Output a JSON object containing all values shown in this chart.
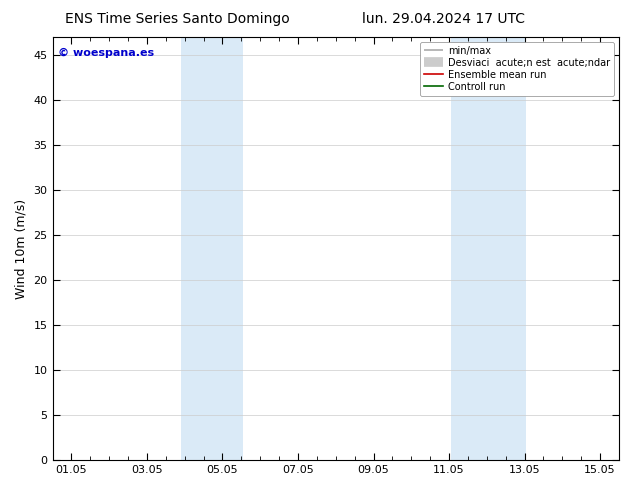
{
  "title_left": "ENS Time Series Santo Domingo",
  "title_right": "lun. 29.04.2024 17 UTC",
  "watermark": "© woespana.es",
  "ylabel": "Wind 10m (m/s)",
  "ylim": [
    0,
    47
  ],
  "yticks": [
    0,
    5,
    10,
    15,
    20,
    25,
    30,
    35,
    40,
    45
  ],
  "xtick_labels": [
    "01.05",
    "03.05",
    "05.05",
    "07.05",
    "09.05",
    "11.05",
    "13.05",
    "15.05"
  ],
  "xtick_positions": [
    1,
    3,
    5,
    7,
    9,
    11,
    13,
    15
  ],
  "xlim": [
    0.5,
    15.5
  ],
  "shade_bands": [
    {
      "start": 3.9,
      "end": 5.55
    },
    {
      "start": 11.05,
      "end": 13.05
    }
  ],
  "shade_color": "#daeaf7",
  "background_color": "#ffffff",
  "grid_color": "#cccccc",
  "watermark_color": "#0000cc",
  "legend_minmax_color": "#aaaaaa",
  "legend_std_color": "#cccccc",
  "legend_ens_color": "#cc0000",
  "legend_ctrl_color": "#006600",
  "title_fontsize": 10,
  "ylabel_fontsize": 9,
  "tick_fontsize": 8,
  "legend_fontsize": 7,
  "watermark_fontsize": 8
}
